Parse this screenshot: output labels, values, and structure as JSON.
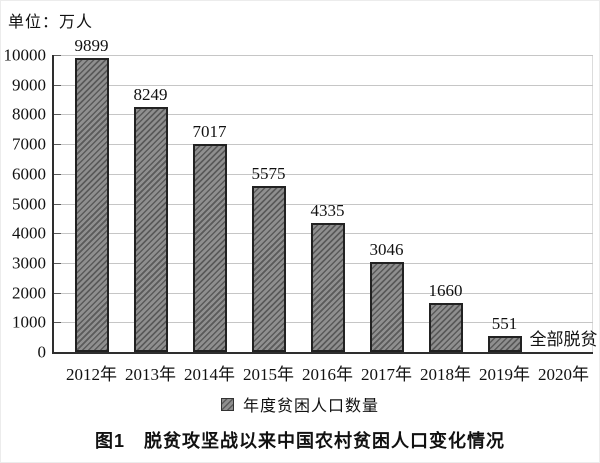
{
  "chart_data": {
    "type": "bar",
    "unit_label": "单位：万人",
    "categories": [
      "2012年",
      "2013年",
      "2014年",
      "2015年",
      "2016年",
      "2017年",
      "2018年",
      "2019年",
      "2020年"
    ],
    "values": [
      9899,
      8249,
      7017,
      5575,
      4335,
      3046,
      1660,
      551,
      null
    ],
    "annotation": {
      "category": "2020年",
      "text": "全部脱贫"
    },
    "legend": [
      {
        "label": "年度贫困人口数量",
        "swatch": "hatched-gray-square"
      }
    ],
    "legend_position": "bottom",
    "caption": "图1　脱贫攻坚战以来中国农村贫困人口变化情况",
    "xlabel": "",
    "ylabel": "",
    "ylim": [
      0,
      10000
    ],
    "y_ticks": [
      0,
      1000,
      2000,
      3000,
      4000,
      5000,
      6000,
      7000,
      8000,
      9000,
      10000
    ],
    "grid": "horizontal",
    "colors": {
      "bar_fill": "#8f8f8f",
      "bar_hatch": "#5a5a5a",
      "bar_border": "#222222",
      "gridline": "#c6c6c6",
      "axis": "#2e2e2e",
      "text": "#111111"
    }
  }
}
